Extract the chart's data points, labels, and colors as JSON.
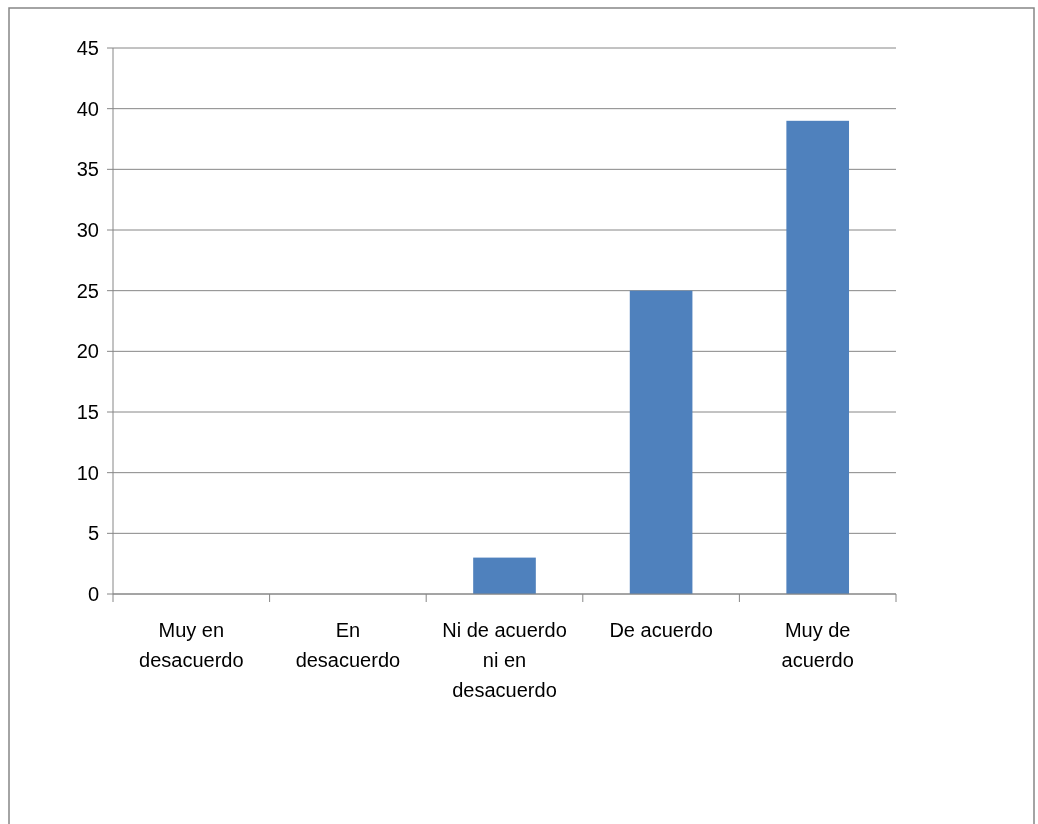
{
  "chart_data": {
    "type": "bar",
    "categories": [
      "Muy en desacuerdo",
      "En desacuerdo",
      "Ni de acuerdo ni en desacuerdo",
      "De acuerdo",
      "Muy de acuerdo"
    ],
    "values": [
      0,
      0,
      3,
      25,
      39
    ],
    "color": "#4f81bd",
    "ylim": [
      0,
      45
    ],
    "yticks": [
      0,
      5,
      10,
      15,
      20,
      25,
      30,
      35,
      40,
      45
    ],
    "grid": "y"
  }
}
